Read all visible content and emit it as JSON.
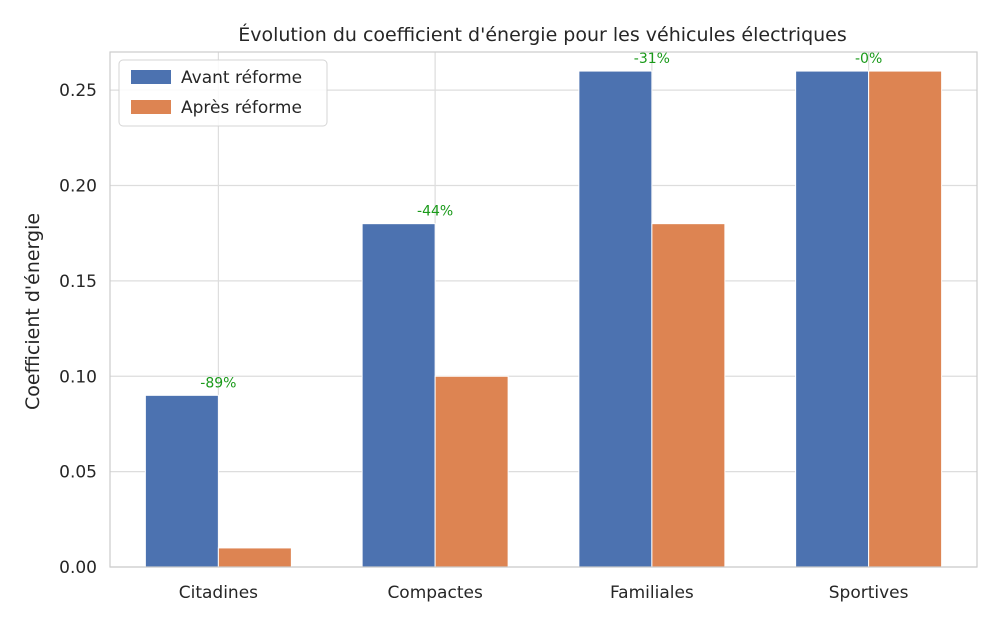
{
  "chart_data": {
    "type": "bar",
    "title": "Évolution du coefficient d'énergie pour les véhicules électriques",
    "xlabel": "",
    "ylabel": "Coefficient d'énergie",
    "categories": [
      "Citadines",
      "Compactes",
      "Familiales",
      "Sportives"
    ],
    "series": [
      {
        "name": "Avant réforme",
        "color": "#4c72b0",
        "values": [
          0.09,
          0.18,
          0.26,
          0.26
        ]
      },
      {
        "name": "Après réforme",
        "color": "#dd8452",
        "values": [
          0.01,
          0.1,
          0.18,
          0.26
        ]
      }
    ],
    "annotations": [
      "-89%",
      "-44%",
      "-31%",
      "-0%"
    ],
    "annotation_color": "#1a9a1a",
    "ylim": [
      0,
      0.27
    ],
    "yticks": [
      "0.00",
      "0.05",
      "0.10",
      "0.15",
      "0.20",
      "0.25"
    ],
    "grid": true,
    "legend_position": "top-left"
  }
}
